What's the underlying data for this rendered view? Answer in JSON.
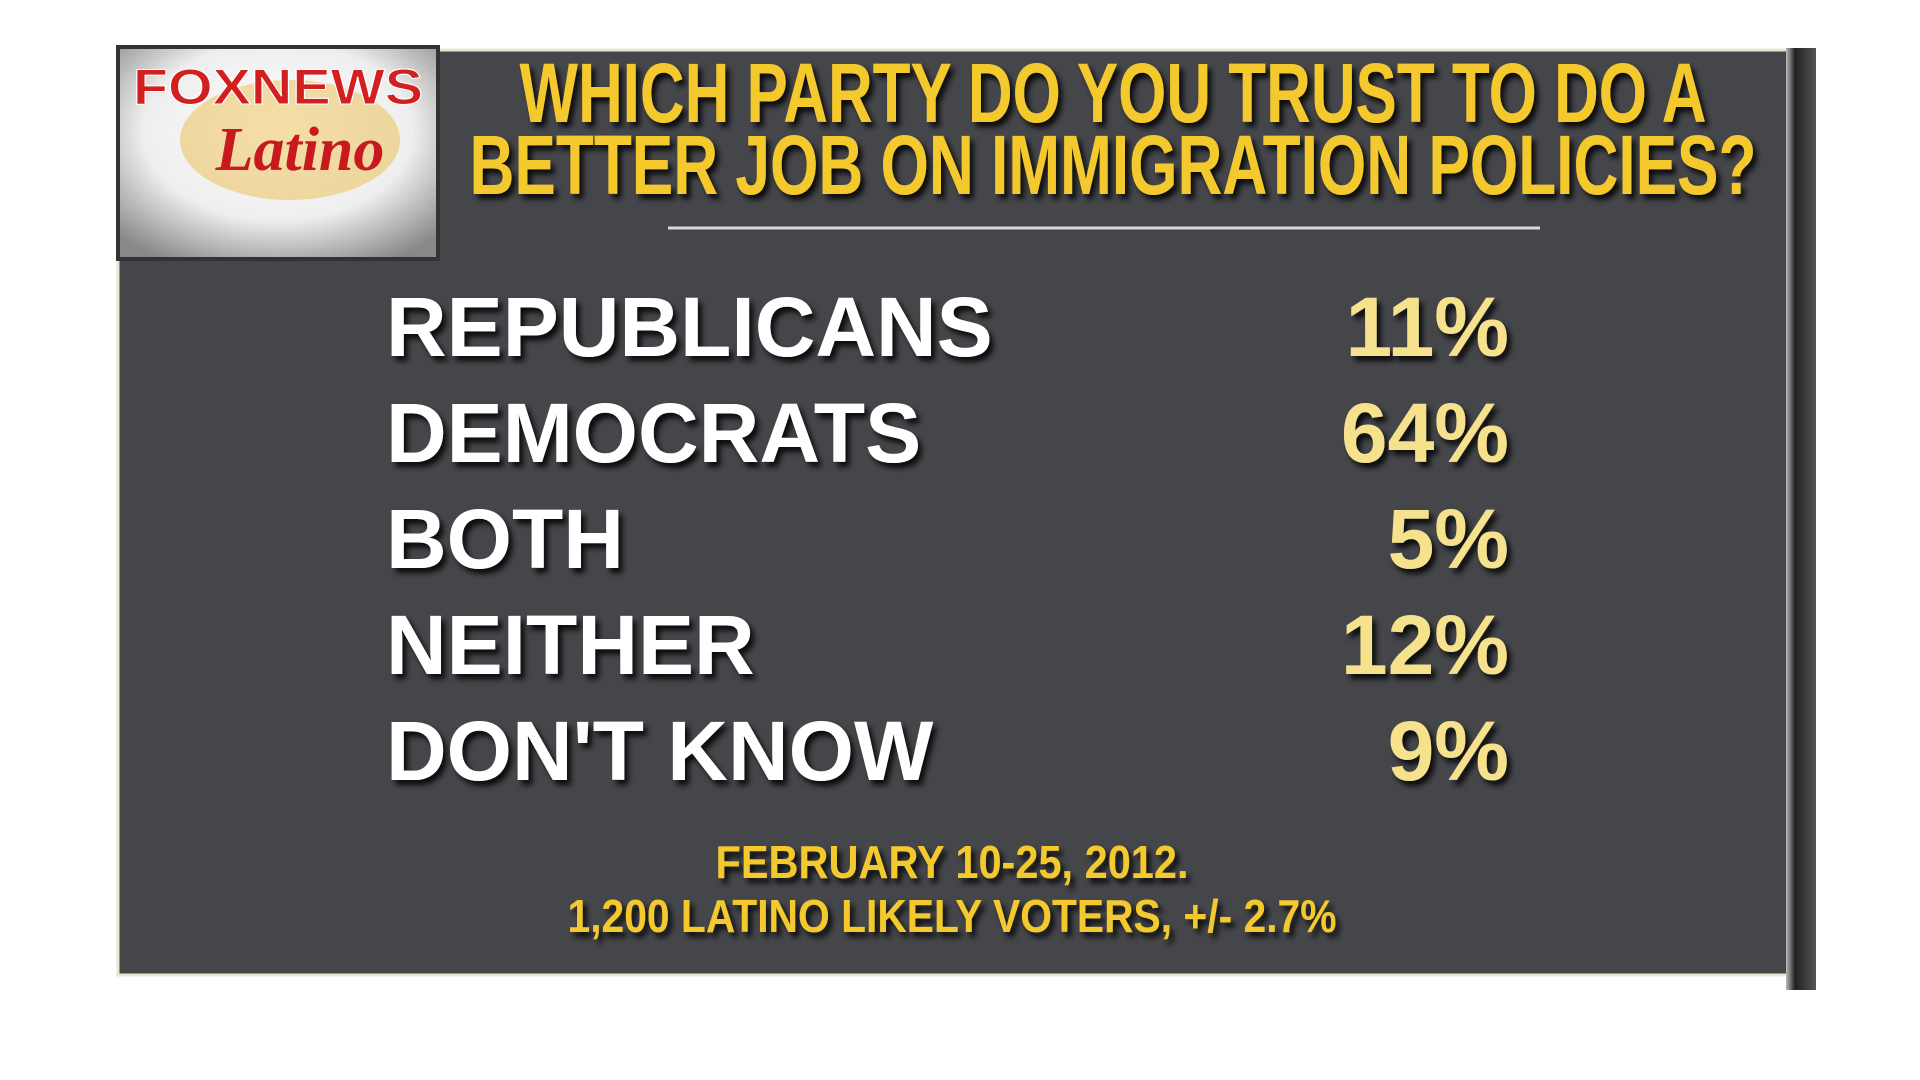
{
  "logo": {
    "brand": "FOXNEWS",
    "sub": "Latino"
  },
  "title": {
    "lines": [
      "WHICH PARTY DO YOU TRUST TO DO A",
      "BETTER JOB ON IMMIGRATION POLICIES?"
    ]
  },
  "table": {
    "rows": [
      [
        "REPUBLICANS",
        "11%"
      ],
      [
        "DEMOCRATS",
        "64%"
      ],
      [
        "BOTH",
        "5%"
      ],
      [
        "NEITHER",
        "12%"
      ],
      [
        "DON'T KNOW",
        "9%"
      ]
    ]
  },
  "footnote": {
    "lines": [
      "FEBRUARY 10-25, 2012.",
      "1,200 LATINO LIKELY VOTERS, +/- 2.7%"
    ]
  }
}
